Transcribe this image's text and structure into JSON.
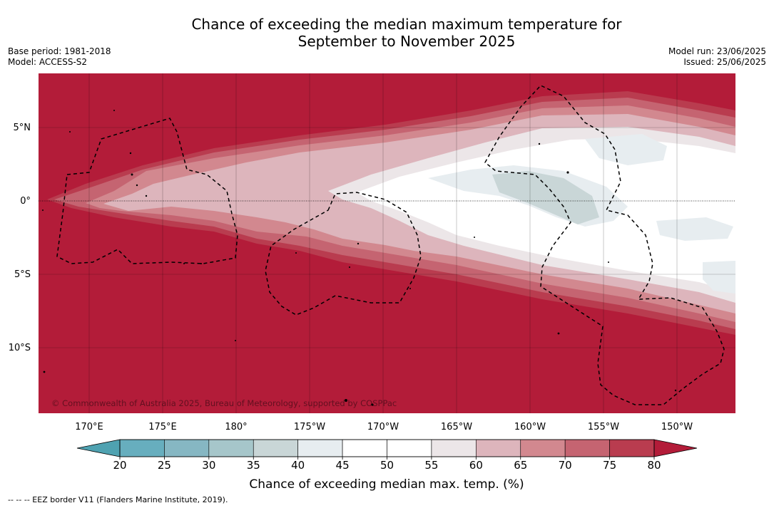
{
  "title_line1": "Chance of exceeding the median maximum temperature for",
  "title_line2": "September to November 2025",
  "base_period": "Base period: 1981-2018",
  "model": "Model: ACCESS-S2",
  "model_run": "Model run: 23/06/2025",
  "issued": "Issued: 25/06/2025",
  "copyright": "© Commonwealth of Australia 2025, Bureau of Meteorology, supported by COSPPac",
  "longitude_labels": [
    "170°E",
    "175°E",
    "180°",
    "175°W",
    "170°W",
    "165°W",
    "160°W",
    "155°W",
    "150°W"
  ],
  "latitude_labels": [
    "5°N",
    "0°",
    "5°S",
    "10°S"
  ],
  "colorbar": {
    "ticks": [
      "20",
      "25",
      "30",
      "35",
      "40",
      "45",
      "50",
      "55",
      "60",
      "65",
      "70",
      "75",
      "80"
    ],
    "colors": [
      "#67aebe",
      "#86b7c3",
      "#a6c6ca",
      "#c9d6d7",
      "#e7edf0",
      "#ffffff",
      "#ffffff",
      "#ece6e8",
      "#ddb5bc",
      "#d2888f",
      "#c56471",
      "#b93c4f"
    ],
    "under_color": "#4fa2b1",
    "over_color": "#b31c39",
    "label": "Chance of exceeding median max. temp. (%)"
  },
  "legend_note": "-- -- -- EEZ border V11 (Flanders Marine Institute, 2019)."
}
